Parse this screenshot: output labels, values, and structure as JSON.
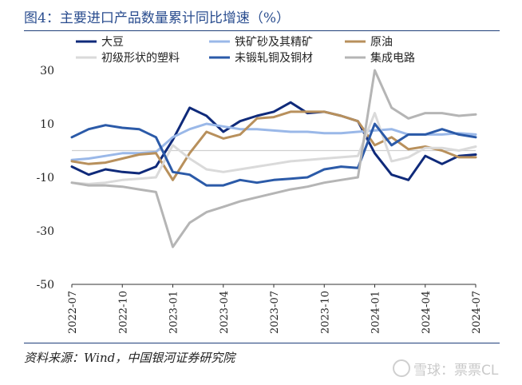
{
  "title": "图4：主要进口产品数量累计同比增速（%）",
  "source": "资料来源：Wind，中国银河证券研究院",
  "watermark": "雪球：票票CL",
  "chart_data": {
    "type": "line",
    "title": "",
    "xlabel": "",
    "ylabel": "",
    "ylim": [
      -50,
      30
    ],
    "yticks": [
      30,
      10,
      -10,
      -30,
      -50
    ],
    "x": [
      "2022-07",
      "2022-08",
      "2022-09",
      "2022-10",
      "2022-11",
      "2022-12",
      "2023-01",
      "2023-02",
      "2023-03",
      "2023-04",
      "2023-05",
      "2023-06",
      "2023-07",
      "2023-08",
      "2023-09",
      "2023-10",
      "2023-11",
      "2023-12",
      "2024-01",
      "2024-02",
      "2024-03",
      "2024-04",
      "2024-05",
      "2024-06",
      "2024-07"
    ],
    "xtick_labels": [
      "2022-07",
      "2022-10",
      "2023-01",
      "2023-04",
      "2023-07",
      "2023-10",
      "2024-01",
      "2024-04",
      "2024-07"
    ],
    "zero_line": true,
    "legend_position": "top",
    "series": [
      {
        "name": "大豆",
        "color": "#0f2a7a",
        "width": 3,
        "values": [
          -6,
          -9,
          -7,
          -8,
          -8.5,
          -6,
          4,
          16,
          13,
          7,
          11,
          13,
          14.5,
          18,
          14,
          14.5,
          13,
          11,
          -1,
          -9,
          -11,
          -2,
          -5,
          -2,
          -1.5
        ]
      },
      {
        "name": "铁矿砂及其精矿",
        "color": "#9ab8e8",
        "width": 3,
        "values": [
          -3.5,
          -3,
          -2,
          -1,
          -1,
          -0.5,
          5,
          8,
          10,
          9,
          8,
          8,
          7.5,
          7,
          7,
          6.5,
          6.5,
          7,
          7.5,
          8,
          6,
          6,
          6,
          6.5,
          6
        ]
      },
      {
        "name": "原油",
        "color": "#b8905c",
        "width": 3,
        "values": [
          -4,
          -5,
          -4.5,
          -3,
          -1.5,
          -1,
          -11,
          -1,
          7,
          4.5,
          6,
          12,
          12.5,
          14.5,
          14.5,
          14.5,
          13,
          11,
          2,
          5,
          0.5,
          1.5,
          0,
          -2.5,
          -2.5
        ]
      },
      {
        "name": "初级形状的塑料",
        "color": "#dadada",
        "width": 3,
        "values": [
          -12,
          -12.5,
          -12,
          -11,
          -10.5,
          -10,
          2,
          -3,
          -7,
          -8,
          -7,
          -6,
          -5,
          -4,
          -3.5,
          -3,
          -2.5,
          -2,
          14,
          -4,
          -2.5,
          1,
          1,
          0,
          1.5
        ]
      },
      {
        "name": "未锻轧铜及铜材",
        "color": "#2b5aa8",
        "width": 3,
        "values": [
          5,
          8,
          9.5,
          8.5,
          8,
          5,
          -8,
          -9,
          -13,
          -13,
          -11,
          -12,
          -11,
          -10.5,
          -10,
          -7,
          -6,
          -6.5,
          10,
          2,
          6,
          6,
          8,
          6,
          5
        ]
      },
      {
        "name": "集成电路",
        "color": "#b5b5b5",
        "width": 3,
        "values": [
          -12,
          -13,
          -13,
          -13.5,
          -14.5,
          -15.5,
          -36,
          -27,
          -23,
          -21,
          -19,
          -17.5,
          -16,
          -14.5,
          -13.5,
          -12,
          -11,
          -10,
          30,
          16,
          12,
          14,
          14,
          13,
          13.5
        ]
      }
    ]
  }
}
